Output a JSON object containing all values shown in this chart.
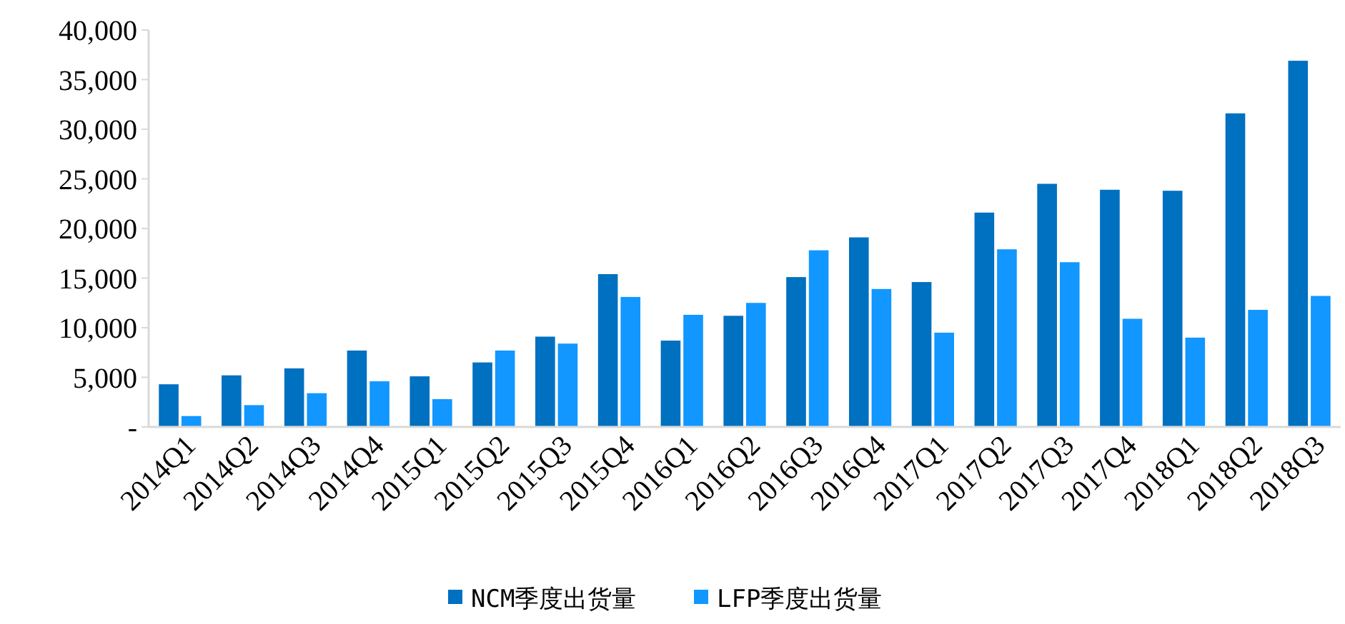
{
  "chart_data": {
    "type": "bar",
    "categories": [
      "2014Q1",
      "2014Q2",
      "2014Q3",
      "2014Q4",
      "2015Q1",
      "2015Q2",
      "2015Q3",
      "2015Q4",
      "2016Q1",
      "2016Q2",
      "2016Q3",
      "2016Q4",
      "2017Q1",
      "2017Q2",
      "2017Q3",
      "2017Q4",
      "2018Q1",
      "2018Q2",
      "2018Q3"
    ],
    "series": [
      {
        "name": "NCM季度出货量",
        "color": "#0070c0",
        "values": [
          4300,
          5200,
          5900,
          7700,
          5100,
          6500,
          9100,
          15400,
          8700,
          11200,
          15100,
          19100,
          14600,
          21600,
          24500,
          23900,
          23800,
          31600,
          36900
        ]
      },
      {
        "name": "LFP季度出货量",
        "color": "#1197ff",
        "values": [
          1100,
          2200,
          3400,
          4600,
          2800,
          7700,
          8400,
          13100,
          11300,
          12500,
          17800,
          13900,
          9500,
          17900,
          16600,
          10900,
          9000,
          11800,
          13200
        ]
      }
    ],
    "ylim": [
      0,
      40000
    ],
    "yticks": [
      {
        "value": 0,
        "label": "-"
      },
      {
        "value": 5000,
        "label": "5,000"
      },
      {
        "value": 10000,
        "label": "10,000"
      },
      {
        "value": 15000,
        "label": "15,000"
      },
      {
        "value": 20000,
        "label": "20,000"
      },
      {
        "value": 25000,
        "label": "25,000"
      },
      {
        "value": 30000,
        "label": "30,000"
      },
      {
        "value": 35000,
        "label": "35,000"
      },
      {
        "value": 40000,
        "label": "40,000"
      }
    ],
    "grid": false,
    "legend": "bottom"
  }
}
